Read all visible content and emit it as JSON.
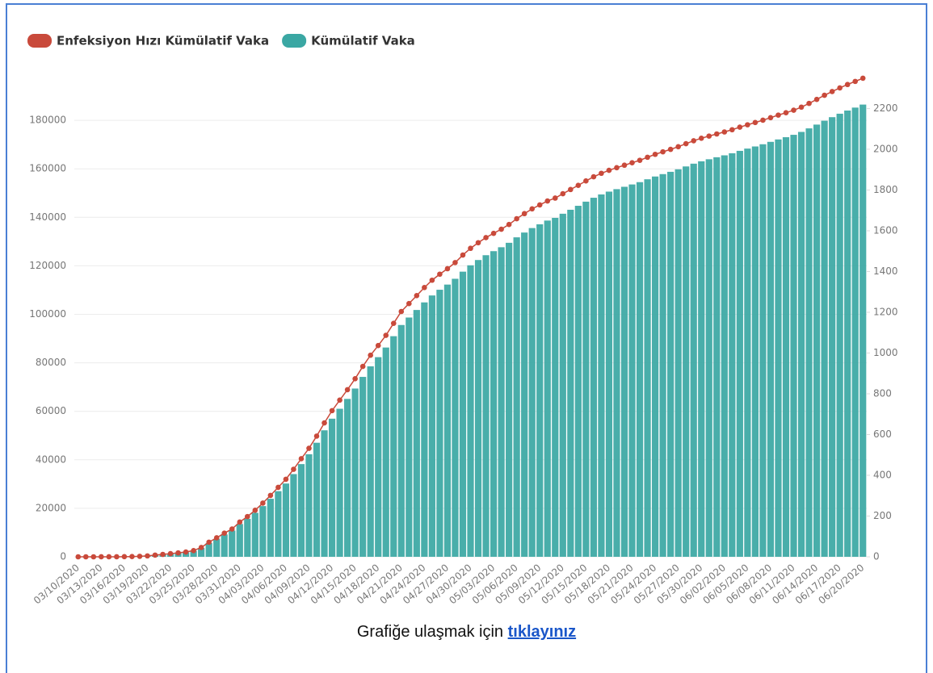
{
  "chart_data": {
    "type": "bar",
    "categories": [
      "03/10/2020",
      null,
      null,
      "03/13/2020",
      null,
      null,
      "03/16/2020",
      null,
      null,
      "03/19/2020",
      null,
      null,
      "03/22/2020",
      null,
      null,
      "03/25/2020",
      null,
      null,
      "03/28/2020",
      null,
      null,
      "03/31/2020",
      null,
      null,
      "04/03/2020",
      null,
      null,
      "04/06/2020",
      null,
      null,
      "04/09/2020",
      null,
      null,
      "04/12/2020",
      null,
      null,
      "04/15/2020",
      null,
      null,
      "04/18/2020",
      null,
      null,
      "04/21/2020",
      null,
      null,
      "04/24/2020",
      null,
      null,
      "04/27/2020",
      null,
      null,
      "04/30/2020",
      null,
      null,
      "05/03/2020",
      null,
      null,
      "05/06/2020",
      null,
      null,
      "05/09/2020",
      null,
      null,
      "05/12/2020",
      null,
      null,
      "05/15/2020",
      null,
      null,
      "05/18/2020",
      null,
      null,
      "05/21/2020",
      null,
      null,
      "05/24/2020",
      null,
      null,
      "05/27/2020",
      null,
      null,
      "05/30/2020",
      null,
      null,
      "06/02/2020",
      null,
      null,
      "06/05/2020",
      null,
      null,
      "06/08/2020",
      null,
      null,
      "06/11/2020",
      null,
      null,
      "06/14/2020",
      null,
      null,
      "06/17/2020",
      null,
      null,
      "06/20/2020"
    ],
    "series": [
      {
        "name": "Enfeksiyon Hızı Kümülatif Vaka",
        "color": "#c94a3b",
        "type": "line",
        "axis": "y2",
        "values": [
          0,
          0,
          0,
          0.1,
          0.1,
          0.2,
          0.6,
          1.2,
          2.4,
          4.5,
          8.4,
          11.9,
          15.6,
          19.3,
          23.6,
          30.6,
          45.7,
          71.8,
          93.2,
          116.1,
          136.4,
          170.4,
          197.5,
          228.4,
          263.5,
          301.4,
          340.9,
          380.6,
          429.6,
          481.4,
          532.5,
          592.3,
          657.0,
          717.3,
          768.9,
          820.0,
          873.9,
          934.4,
          989.2,
          1036.9,
          1086.9,
          1145.8,
          1203.9,
          1242.7,
          1281.9,
          1321.3,
          1357.3,
          1387.0,
          1413.8,
          1443.9,
          1480.9,
          1513.8,
          1541.4,
          1566.4,
          1587.4,
          1607.7,
          1630.8,
          1659.2,
          1684.1,
          1707.4,
          1726.8,
          1746.3,
          1760.3,
          1781.7,
          1802.4,
          1823.0,
          1844.5,
          1864.8,
          1882.0,
          1896.6,
          1909.5,
          1921.7,
          1933.8,
          1945.8,
          1960.7,
          1975.1,
          1987.5,
          1999.4,
          2012.5,
          2027.4,
          2041.7,
          2054.1,
          2064.7,
          2075.1,
          2085.0,
          2095.9,
          2108.4,
          2120.1,
          2131.1,
          2142.6,
          2155.1,
          2167.6,
          2179.2,
          2191.6,
          2206.7,
          2225.1,
          2244.7,
          2264.8,
          2283.2,
          2301.2,
          2317.7,
          2333.0,
          2348.7
        ]
      },
      {
        "name": "Kümülatif Vaka",
        "color": "#3aa7a3",
        "type": "bar",
        "values": [
          0,
          1,
          1,
          5,
          6,
          18,
          47,
          98,
          191,
          359,
          670,
          947,
          1236,
          1529,
          1872,
          2433,
          3629,
          5698,
          7402,
          9217,
          10827,
          13531,
          15679,
          18135,
          20921,
          23934,
          27069,
          30217,
          34109,
          38226,
          42282,
          47029,
          52167,
          56956,
          61049,
          65111,
          69392,
          74193,
          78546,
          82329,
          86306,
          90980,
          95591,
          98674,
          101790,
          104912,
          107773,
          110130,
          112261,
          114653,
          117589,
          120204,
          122392,
          124375,
          126045,
          127659,
          129491,
          131744,
          133721,
          135569,
          137115,
          138657,
          139771,
          141475,
          143114,
          144749,
          146457,
          148067,
          149435,
          150593,
          151615,
          152587,
          153548,
          154500,
          155686,
          156827,
          157814,
          158762,
          159797,
          160979,
          162120,
          163103,
          163942,
          164769,
          165555,
          166422,
          167410,
          168340,
          169218,
          170132,
          171121,
          172114,
          173036,
          174023,
          175218,
          176677,
          178239,
          179831,
          181298,
          182727,
          184031,
          185245,
          186493
        ]
      }
    ],
    "ylim": [
      0,
      200000
    ],
    "yticks": [
      0,
      20000,
      40000,
      60000,
      80000,
      100000,
      120000,
      140000,
      160000,
      180000
    ],
    "y2lim": [
      0,
      2380
    ],
    "y2ticks": [
      0,
      200,
      400,
      600,
      800,
      1000,
      1200,
      1400,
      1600,
      1800,
      2000,
      2200
    ],
    "grid": true
  },
  "caption": {
    "text": "Grafiğe ulaşmak için",
    "link": "tıklayınız"
  }
}
